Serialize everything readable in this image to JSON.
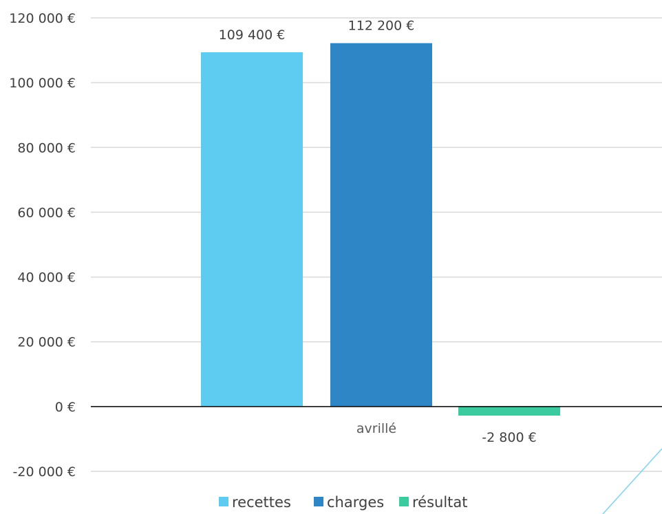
{
  "chart_data": {
    "type": "bar",
    "categories": [
      "avrillé"
    ],
    "series": [
      {
        "name": "recettes",
        "values": [
          109400
        ],
        "label": "109 400 €",
        "color": "#5ECBF0"
      },
      {
        "name": "charges",
        "values": [
          112200
        ],
        "label": "112 200 €",
        "color": "#2E86C6"
      },
      {
        "name": "résultat",
        "values": [
          -2800
        ],
        "label": "-2 800 €",
        "color": "#3CCB9E"
      }
    ],
    "ylim": [
      -20000,
      120000
    ],
    "yticks": [
      {
        "value": 120000,
        "label": "120 000 €"
      },
      {
        "value": 100000,
        "label": "100 000 €"
      },
      {
        "value": 80000,
        "label": "80 000 €"
      },
      {
        "value": 60000,
        "label": "60 000 €"
      },
      {
        "value": 40000,
        "label": "40 000 €"
      },
      {
        "value": 20000,
        "label": "20 000 €"
      },
      {
        "value": 0,
        "label": "0 €"
      },
      {
        "value": -20000,
        "label": "-20 000 €"
      }
    ],
    "grid": true,
    "legend": "bottom-center",
    "title": "",
    "xlabel": "",
    "ylabel": ""
  },
  "colors": {
    "grid": "#D9D9D9",
    "axis": "#000000",
    "decor_line": "#7FD3F0"
  }
}
